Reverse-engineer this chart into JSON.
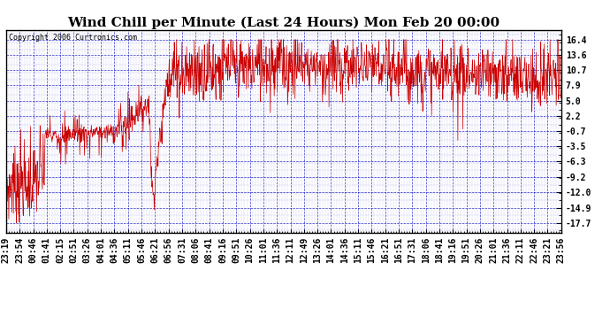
{
  "title": "Wind Chill per Minute (Last 24 Hours) Mon Feb 20 00:00",
  "copyright": "Copyright 2006 Curtronics.com",
  "yticks": [
    16.4,
    13.6,
    10.7,
    7.9,
    5.0,
    2.2,
    -0.7,
    -3.5,
    -6.3,
    -9.2,
    -12.0,
    -14.9,
    -17.7
  ],
  "ylim": [
    -19.5,
    18.2
  ],
  "background_color": "#ffffff",
  "plot_bg_color": "#ffffff",
  "line_color": "#cc0000",
  "grid_color": "#0000bb",
  "title_fontsize": 11,
  "tick_fontsize": 7,
  "xtick_labels": [
    "23:19",
    "23:54",
    "00:46",
    "01:41",
    "02:15",
    "02:51",
    "03:26",
    "04:01",
    "04:36",
    "05:11",
    "05:46",
    "06:21",
    "06:56",
    "07:31",
    "08:06",
    "08:41",
    "09:16",
    "09:51",
    "10:26",
    "11:01",
    "11:36",
    "12:11",
    "12:49",
    "13:26",
    "14:01",
    "14:36",
    "15:11",
    "15:46",
    "16:21",
    "16:51",
    "17:31",
    "18:06",
    "18:41",
    "19:16",
    "19:51",
    "20:26",
    "21:01",
    "21:36",
    "22:11",
    "22:46",
    "23:21",
    "23:56"
  ]
}
